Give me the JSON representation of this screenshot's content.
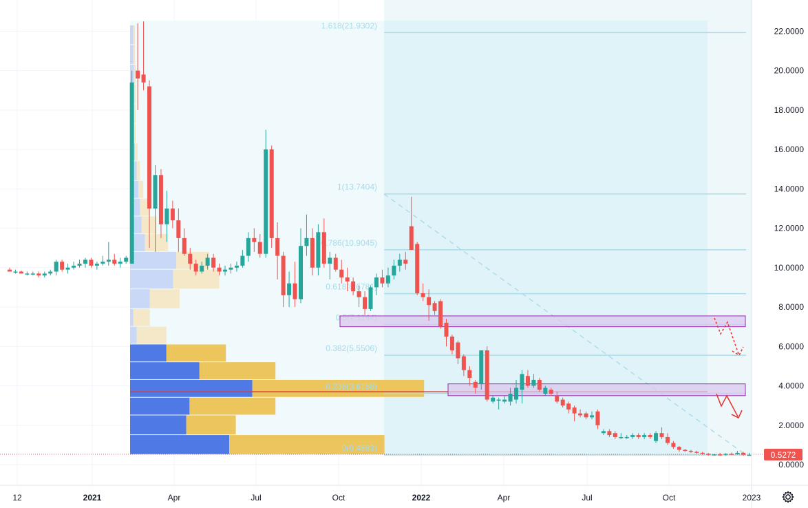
{
  "chart_data": {
    "type": "candlestick",
    "y_axis": {
      "ticks": [
        0,
        2,
        4,
        6,
        8,
        10,
        12,
        14,
        16,
        18,
        20,
        22
      ],
      "tick_labels": [
        "0.0000",
        "2.0000",
        "4.0000",
        "6.0000",
        "8.0000",
        "10.0000",
        "12.0000",
        "14.0000",
        "16.0000",
        "18.0000",
        "20.0000",
        "22.0000"
      ],
      "range": [
        -0.8,
        23.3
      ]
    },
    "x_axis": {
      "ticks": [
        {
          "label": "12",
          "bold": false
        },
        {
          "label": "2021",
          "bold": true
        },
        {
          "label": "Apr",
          "bold": false
        },
        {
          "label": "Jul",
          "bold": false
        },
        {
          "label": "Oct",
          "bold": false
        },
        {
          "label": "2022",
          "bold": true
        },
        {
          "label": "Apr",
          "bold": false
        },
        {
          "label": "Jul",
          "bold": false
        },
        {
          "label": "Oct",
          "bold": false
        },
        {
          "label": "2023",
          "bold": false
        }
      ]
    },
    "last_price": {
      "value": 0.5272,
      "label": "0.5272"
    },
    "fibonacci": [
      {
        "level": "1.618",
        "price": 21.9302,
        "label": "1.618(21.9302)"
      },
      {
        "level": "1",
        "price": 13.7404,
        "label": "1(13.7404)"
      },
      {
        "level": "0.786",
        "price": 10.9045,
        "label": "0.786(10.9045)"
      },
      {
        "level": "0.618",
        "price": 8.6781,
        "label": "0.618(8.6781)"
      },
      {
        "level": "0.5",
        "price": 7.1144,
        "label": "0.5(7.1144)"
      },
      {
        "level": "0.382",
        "price": 5.5506,
        "label": "0.382(5.5506)"
      },
      {
        "level": "0.236",
        "price": 3.6158,
        "label": "0.236(3.6158)"
      },
      {
        "level": "0",
        "price": 0.4883,
        "label": "0(0.4883)"
      }
    ],
    "zones": [
      {
        "low": 7.0,
        "high": 7.55
      },
      {
        "low": 3.5,
        "high": 4.1
      }
    ],
    "poc_price": 3.7,
    "candles": [
      [
        9.9,
        10.0,
        9.8,
        9.8
      ],
      [
        9.8,
        9.9,
        9.7,
        9.8
      ],
      [
        9.8,
        9.85,
        9.7,
        9.7
      ],
      [
        9.7,
        9.8,
        9.6,
        9.7
      ],
      [
        9.7,
        9.8,
        9.6,
        9.7
      ],
      [
        9.7,
        9.8,
        9.5,
        9.6
      ],
      [
        9.6,
        9.8,
        9.5,
        9.7
      ],
      [
        9.7,
        9.9,
        9.6,
        9.8
      ],
      [
        9.8,
        10.4,
        9.6,
        10.3
      ],
      [
        10.3,
        10.4,
        9.8,
        9.9
      ],
      [
        9.9,
        10.2,
        9.7,
        10.0
      ],
      [
        10.0,
        10.3,
        9.9,
        10.1
      ],
      [
        10.1,
        10.4,
        10.0,
        10.2
      ],
      [
        10.2,
        10.5,
        10.0,
        10.4
      ],
      [
        10.4,
        10.5,
        10.0,
        10.1
      ],
      [
        10.1,
        10.3,
        9.9,
        10.2
      ],
      [
        10.2,
        10.6,
        10.1,
        10.3
      ],
      [
        10.3,
        11.3,
        10.1,
        10.4
      ],
      [
        10.4,
        10.7,
        10.1,
        10.2
      ],
      [
        10.2,
        10.5,
        10.0,
        10.3
      ],
      [
        10.3,
        10.6,
        10.2,
        10.5
      ],
      [
        10.2,
        20.0,
        10.2,
        19.4
      ],
      [
        20.0,
        22.4,
        18.0,
        19.6
      ],
      [
        19.8,
        22.5,
        19.0,
        19.4
      ],
      [
        19.2,
        19.5,
        11.0,
        13.0
      ],
      [
        13.0,
        15.2,
        10.8,
        14.7
      ],
      [
        14.7,
        15.0,
        11.5,
        12.2
      ],
      [
        12.2,
        13.9,
        11.3,
        13.0
      ],
      [
        13.0,
        13.4,
        12.0,
        12.4
      ],
      [
        12.4,
        13.0,
        10.8,
        11.5
      ],
      [
        11.5,
        12.0,
        10.6,
        10.7
      ],
      [
        10.7,
        11.0,
        9.9,
        10.2
      ],
      [
        10.2,
        10.4,
        9.6,
        9.8
      ],
      [
        9.8,
        10.3,
        9.7,
        10.1
      ],
      [
        10.1,
        10.7,
        9.9,
        10.5
      ],
      [
        10.5,
        10.7,
        9.8,
        10.0
      ],
      [
        10.0,
        10.2,
        9.6,
        9.8
      ],
      [
        9.8,
        10.1,
        9.6,
        9.9
      ],
      [
        9.9,
        10.2,
        9.7,
        10.0
      ],
      [
        10.0,
        10.3,
        9.8,
        10.1
      ],
      [
        10.1,
        10.9,
        10.0,
        10.6
      ],
      [
        10.6,
        11.8,
        10.3,
        11.5
      ],
      [
        11.5,
        12.0,
        10.8,
        11.3
      ],
      [
        11.3,
        11.7,
        10.5,
        10.7
      ],
      [
        10.7,
        17.0,
        10.5,
        16.0
      ],
      [
        16.0,
        16.2,
        11.0,
        11.5
      ],
      [
        11.5,
        12.3,
        9.4,
        10.6
      ],
      [
        10.6,
        10.8,
        8.0,
        8.6
      ],
      [
        8.6,
        9.8,
        8.0,
        9.2
      ],
      [
        9.2,
        10.3,
        8.0,
        8.4
      ],
      [
        8.4,
        12.0,
        8.2,
        11.1
      ],
      [
        11.1,
        12.7,
        10.6,
        11.5
      ],
      [
        11.5,
        12.0,
        9.6,
        10.0
      ],
      [
        10.0,
        12.2,
        9.6,
        11.8
      ],
      [
        11.8,
        12.5,
        10.0,
        10.2
      ],
      [
        10.2,
        10.8,
        9.4,
        10.5
      ],
      [
        10.5,
        10.7,
        9.8,
        9.9
      ],
      [
        9.9,
        10.4,
        9.2,
        9.5
      ],
      [
        9.5,
        10.0,
        8.8,
        9.3
      ],
      [
        9.3,
        9.5,
        8.6,
        8.8
      ],
      [
        8.8,
        9.1,
        8.0,
        8.5
      ],
      [
        8.5,
        8.8,
        7.6,
        7.9
      ],
      [
        7.9,
        9.1,
        7.8,
        9.0
      ],
      [
        9.0,
        9.7,
        8.6,
        9.5
      ],
      [
        9.5,
        9.9,
        9.0,
        9.2
      ],
      [
        9.2,
        10.0,
        9.0,
        9.6
      ],
      [
        9.6,
        10.4,
        9.4,
        10.1
      ],
      [
        10.1,
        10.7,
        9.8,
        10.4
      ],
      [
        10.4,
        10.8,
        9.9,
        10.2
      ],
      [
        12.1,
        13.6,
        11.0,
        10.9
      ],
      [
        11.2,
        11.3,
        8.6,
        8.7
      ],
      [
        8.7,
        9.2,
        8.3,
        8.5
      ],
      [
        8.5,
        8.9,
        7.3,
        8.1
      ],
      [
        8.2,
        8.3,
        7.6,
        7.8
      ],
      [
        8.3,
        8.4,
        6.9,
        7.0
      ],
      [
        7.2,
        7.4,
        6.0,
        6.5
      ],
      [
        6.5,
        6.6,
        5.6,
        5.8
      ],
      [
        6.2,
        6.3,
        5.1,
        5.4
      ],
      [
        5.5,
        5.6,
        4.5,
        4.8
      ],
      [
        4.8,
        5.0,
        4.0,
        4.4
      ],
      [
        4.2,
        4.3,
        3.6,
        3.9
      ],
      [
        4.1,
        5.8,
        3.8,
        5.8
      ],
      [
        5.8,
        6.0,
        3.2,
        3.3
      ],
      [
        3.2,
        3.5,
        3.1,
        3.4
      ],
      [
        3.3,
        3.4,
        2.8,
        3.3
      ],
      [
        3.2,
        3.5,
        3.1,
        3.3
      ],
      [
        3.2,
        3.9,
        3.0,
        3.6
      ],
      [
        3.3,
        4.3,
        3.1,
        3.9
      ],
      [
        3.8,
        4.8,
        3.1,
        4.6
      ],
      [
        4.5,
        4.8,
        3.9,
        4.0
      ],
      [
        4.0,
        4.6,
        3.9,
        4.3
      ],
      [
        4.3,
        4.4,
        3.7,
        3.8
      ],
      [
        3.6,
        4.0,
        3.5,
        3.9
      ],
      [
        3.8,
        3.9,
        3.5,
        3.6
      ],
      [
        3.5,
        3.7,
        3.1,
        3.2
      ],
      [
        3.3,
        3.4,
        2.9,
        3.0
      ],
      [
        3.1,
        3.2,
        2.6,
        2.8
      ],
      [
        2.9,
        3.0,
        2.2,
        2.6
      ],
      [
        2.6,
        2.8,
        2.4,
        2.5
      ],
      [
        2.6,
        2.7,
        2.3,
        2.4
      ],
      [
        2.4,
        2.7,
        2.3,
        2.5
      ],
      [
        2.7,
        2.8,
        1.8,
        2.0
      ],
      [
        1.6,
        1.8,
        1.5,
        1.7
      ],
      [
        1.7,
        1.8,
        1.4,
        1.5
      ],
      [
        1.6,
        1.7,
        1.3,
        1.4
      ],
      [
        1.4,
        1.6,
        1.3,
        1.4
      ],
      [
        1.4,
        1.5,
        1.3,
        1.4
      ],
      [
        1.4,
        1.6,
        1.3,
        1.5
      ],
      [
        1.5,
        1.6,
        1.3,
        1.4
      ],
      [
        1.4,
        1.6,
        1.3,
        1.5
      ],
      [
        1.5,
        1.6,
        1.3,
        1.4
      ],
      [
        1.2,
        1.7,
        1.1,
        1.6
      ],
      [
        1.6,
        1.9,
        1.3,
        1.4
      ],
      [
        1.4,
        1.6,
        1.0,
        1.1
      ],
      [
        1.1,
        1.2,
        0.8,
        0.9
      ],
      [
        0.9,
        0.95,
        0.65,
        0.75
      ],
      [
        0.75,
        0.8,
        0.65,
        0.7
      ],
      [
        0.7,
        0.75,
        0.6,
        0.65
      ],
      [
        0.65,
        0.7,
        0.55,
        0.6
      ],
      [
        0.6,
        0.65,
        0.5,
        0.55
      ],
      [
        0.55,
        0.6,
        0.45,
        0.5
      ],
      [
        0.5,
        0.55,
        0.45,
        0.52
      ],
      [
        0.52,
        0.6,
        0.45,
        0.5
      ],
      [
        0.5,
        0.58,
        0.45,
        0.55
      ],
      [
        0.55,
        0.62,
        0.5,
        0.53
      ],
      [
        0.53,
        0.7,
        0.5,
        0.6
      ],
      [
        0.6,
        0.65,
        0.45,
        0.5
      ],
      [
        0.5,
        0.6,
        0.45,
        0.5
      ]
    ],
    "volume_profile": [
      {
        "low": 21.3,
        "high": 22.3,
        "up": 0.01,
        "down": 0.005
      },
      {
        "low": 20.3,
        "high": 21.3,
        "up": 0.01,
        "down": 0.005
      },
      {
        "low": 19.3,
        "high": 20.3,
        "up": 0.012,
        "down": 0.006
      },
      {
        "low": 18.3,
        "high": 19.3,
        "up": 0.012,
        "down": 0.006
      },
      {
        "low": 17.3,
        "high": 18.3,
        "up": 0.012,
        "down": 0.006
      },
      {
        "low": 16.3,
        "high": 17.3,
        "up": 0.012,
        "down": 0.006
      },
      {
        "low": 15.4,
        "high": 16.3,
        "up": 0.015,
        "down": 0.008
      },
      {
        "low": 14.4,
        "high": 15.4,
        "up": 0.02,
        "down": 0.01
      },
      {
        "low": 13.5,
        "high": 14.4,
        "up": 0.025,
        "down": 0.015
      },
      {
        "low": 12.6,
        "high": 13.5,
        "up": 0.03,
        "down": 0.03
      },
      {
        "low": 11.7,
        "high": 12.6,
        "up": 0.035,
        "down": 0.045
      },
      {
        "low": 10.8,
        "high": 11.7,
        "up": 0.045,
        "down": 0.07
      },
      {
        "low": 9.9,
        "high": 10.8,
        "up": 0.14,
        "down": 0.1
      },
      {
        "low": 8.9,
        "high": 9.9,
        "up": 0.13,
        "down": 0.14
      },
      {
        "low": 7.9,
        "high": 8.9,
        "up": 0.06,
        "down": 0.09
      },
      {
        "low": 7.0,
        "high": 7.9,
        "up": 0.01,
        "down": 0.05
      },
      {
        "low": 6.1,
        "high": 7.0,
        "up": 0.02,
        "down": 0.09
      },
      {
        "low": 5.2,
        "high": 6.1,
        "up": 0.11,
        "down": 0.18
      },
      {
        "low": 4.3,
        "high": 5.2,
        "up": 0.21,
        "down": 0.23
      },
      {
        "low": 3.4,
        "high": 4.3,
        "up": 0.37,
        "down": 0.52
      },
      {
        "low": 2.5,
        "high": 3.4,
        "up": 0.18,
        "down": 0.26
      },
      {
        "low": 1.5,
        "high": 2.5,
        "up": 0.17,
        "down": 0.15
      },
      {
        "low": 0.5,
        "high": 1.5,
        "up": 0.3,
        "down": 0.47
      }
    ],
    "colors": {
      "up": "#26a69a",
      "down": "#ef5350",
      "fib_line": "#a9dbe8",
      "fib_bg": "#e0f3f8",
      "zone_fill": "#d9c8ee",
      "zone_stroke": "#9c27b0",
      "vp_up": "#4f7ae6",
      "vp_down": "#ecc55c",
      "poc": "#e23b3b",
      "projection": "#e53935"
    },
    "grid": true
  }
}
